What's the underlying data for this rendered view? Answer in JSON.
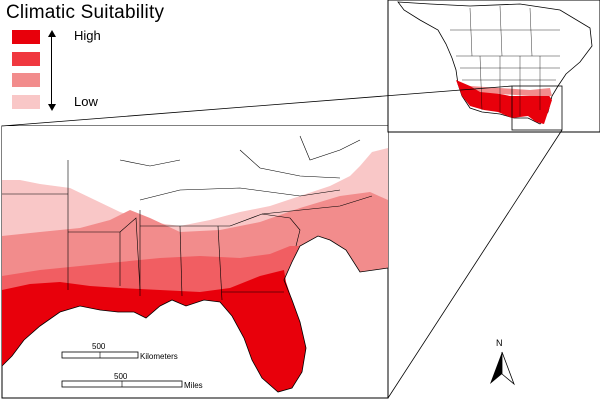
{
  "legend": {
    "title": "Climatic Suitability",
    "high_label": "High",
    "low_label": "Low",
    "classes": [
      {
        "color": "#e8000b"
      },
      {
        "color": "#f0383f"
      },
      {
        "color": "#f28c8c"
      },
      {
        "color": "#f9c7c7"
      }
    ]
  },
  "scale": {
    "km_value": "500",
    "km_unit": "Kilometers",
    "mi_value": "500",
    "mi_unit": "Miles"
  },
  "north_label": "N",
  "colors": {
    "high": "#e8000b",
    "mid_high": "#f0383f",
    "mid_low": "#f28c8c",
    "low": "#f9c7c7",
    "water": "#ffffff",
    "border": "#000000"
  }
}
